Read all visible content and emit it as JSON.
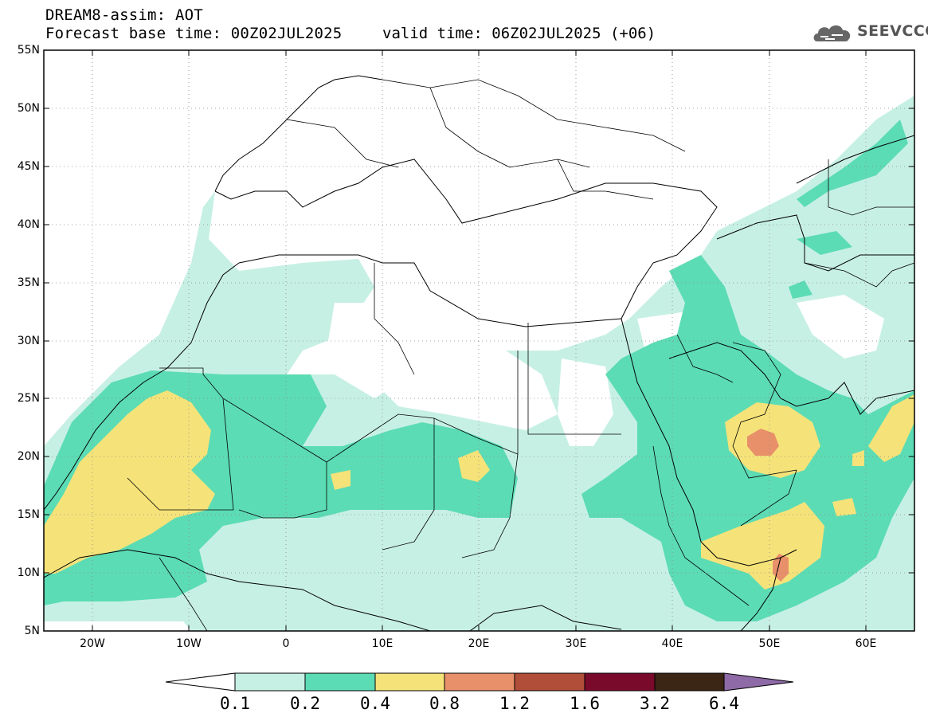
{
  "header": {
    "title_line1": "DREAM8-assim: AOT",
    "title_line2": "Forecast base time: 00Z02JUL2025",
    "valid_time": "valid time: 06Z02JUL2025 (+06)"
  },
  "logo": {
    "text": "SEEVCCC"
  },
  "map": {
    "lon_range": [
      -25,
      65
    ],
    "lat_range": [
      5,
      55
    ],
    "lat_labels": [
      "55N",
      "50N",
      "45N",
      "40N",
      "35N",
      "30N",
      "25N",
      "20N",
      "15N",
      "10N",
      "5N"
    ],
    "lon_labels": [
      "20W",
      "10W",
      "0",
      "10E",
      "20E",
      "30E",
      "40E",
      "50E",
      "60E"
    ],
    "gridlines": "dotted"
  },
  "colorbar": {
    "labels": [
      "0.1",
      "0.2",
      "0.4",
      "0.8",
      "1.2",
      "1.6",
      "3.2",
      "6.4"
    ],
    "colors": [
      "#ffffff",
      "#c7f0e4",
      "#5cdcb4",
      "#f5e37a",
      "#e8906a",
      "#b04e3a",
      "#7a0a2c",
      "#3b2515",
      "#8e6aa6"
    ]
  }
}
